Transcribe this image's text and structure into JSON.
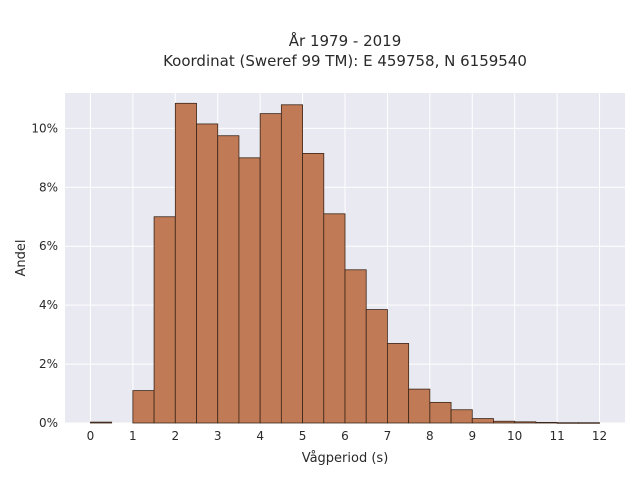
{
  "chart_data": {
    "type": "bar",
    "title_line1": "År 1979 - 2019",
    "title_line2": "Koordinat (Sweref 99 TM): E 459758, N 6159540",
    "xlabel": "Vågperiod (s)",
    "ylabel": "Andel",
    "xlim": [
      -0.6,
      12.6
    ],
    "ylim": [
      0,
      11.2
    ],
    "bin_width": 0.5,
    "x_ticks": [
      0,
      1,
      2,
      3,
      4,
      5,
      6,
      7,
      8,
      9,
      10,
      11,
      12
    ],
    "x_tick_labels": [
      "0",
      "1",
      "2",
      "3",
      "4",
      "5",
      "6",
      "7",
      "8",
      "9",
      "10",
      "11",
      "12"
    ],
    "y_ticks": [
      0,
      2,
      4,
      6,
      8,
      10
    ],
    "y_tick_labels": [
      "0%",
      "2%",
      "4%",
      "6%",
      "8%",
      "10%"
    ],
    "grid": true,
    "bins": [
      {
        "x": 0.0,
        "value": 0.03
      },
      {
        "x": 1.0,
        "value": 1.1
      },
      {
        "x": 1.5,
        "value": 7.0
      },
      {
        "x": 2.0,
        "value": 10.85
      },
      {
        "x": 2.5,
        "value": 10.15
      },
      {
        "x": 3.0,
        "value": 9.75
      },
      {
        "x": 3.5,
        "value": 9.0
      },
      {
        "x": 4.0,
        "value": 10.5
      },
      {
        "x": 4.5,
        "value": 10.8
      },
      {
        "x": 5.0,
        "value": 9.15
      },
      {
        "x": 5.5,
        "value": 7.1
      },
      {
        "x": 6.0,
        "value": 5.2
      },
      {
        "x": 6.5,
        "value": 3.85
      },
      {
        "x": 7.0,
        "value": 2.7
      },
      {
        "x": 7.5,
        "value": 1.15
      },
      {
        "x": 8.0,
        "value": 0.7
      },
      {
        "x": 8.5,
        "value": 0.45
      },
      {
        "x": 9.0,
        "value": 0.15
      },
      {
        "x": 9.5,
        "value": 0.06
      },
      {
        "x": 10.0,
        "value": 0.04
      },
      {
        "x": 10.5,
        "value": 0.02
      },
      {
        "x": 11.0,
        "value": 0.01
      },
      {
        "x": 11.5,
        "value": 0.01
      }
    ],
    "colors": {
      "bar_fill": "#c07a55",
      "bar_edge": "#3b2518",
      "plot_background": "#e9e9f1",
      "grid": "#ffffff"
    }
  }
}
